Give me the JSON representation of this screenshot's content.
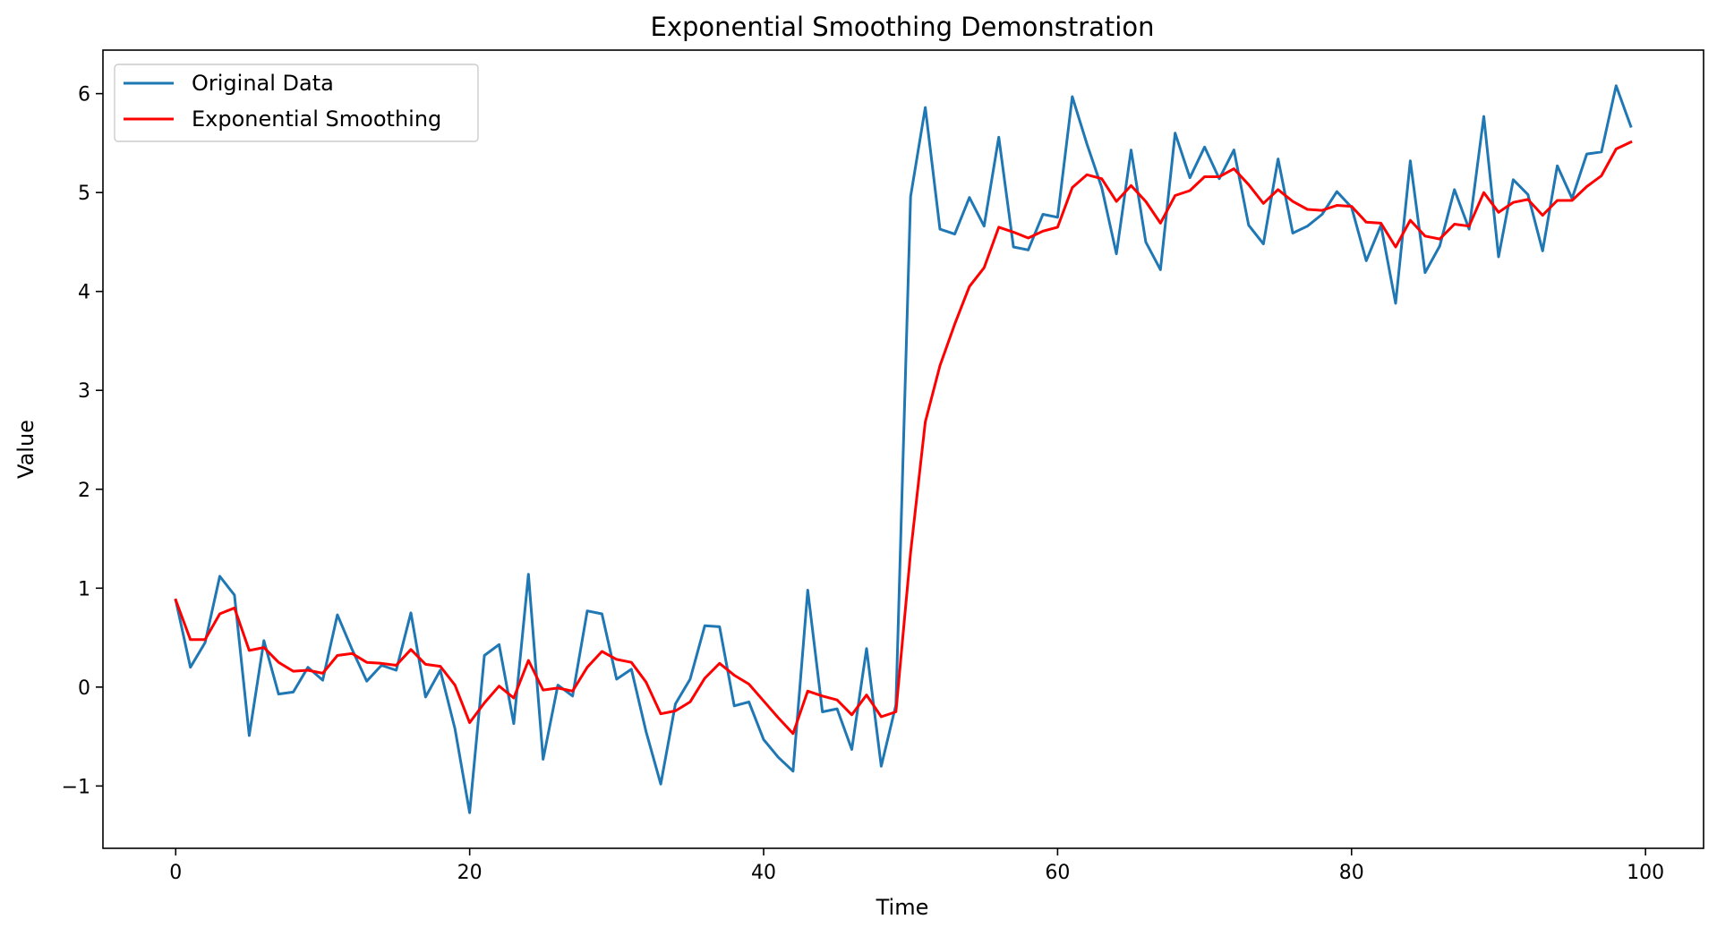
{
  "chart_data": {
    "type": "line",
    "title": "Exponential Smoothing Demonstration",
    "xlabel": "Time",
    "ylabel": "Value",
    "xlim": [
      -4.95,
      103.95
    ],
    "ylim": [
      -1.63,
      6.44
    ],
    "xticks": [
      0,
      20,
      40,
      60,
      80,
      100
    ],
    "yticks": [
      -1,
      0,
      1,
      2,
      3,
      4,
      5,
      6
    ],
    "ytick_labels": [
      "−1",
      "0",
      "1",
      "2",
      "3",
      "4",
      "5",
      "6"
    ],
    "grid": false,
    "legend_position": "top-left",
    "series": [
      {
        "name": "Original Data",
        "color": "#1f77b4",
        "x": [
          0,
          1,
          2,
          3,
          4,
          5,
          6,
          7,
          8,
          9,
          10,
          11,
          12,
          13,
          14,
          15,
          16,
          17,
          18,
          19,
          20,
          21,
          22,
          23,
          24,
          25,
          26,
          27,
          28,
          29,
          30,
          31,
          32,
          33,
          34,
          35,
          36,
          37,
          38,
          39,
          40,
          41,
          42,
          43,
          44,
          45,
          46,
          47,
          48,
          49,
          50,
          51,
          52,
          53,
          54,
          55,
          56,
          57,
          58,
          59,
          60,
          61,
          62,
          63,
          64,
          65,
          66,
          67,
          68,
          69,
          70,
          71,
          72,
          73,
          74,
          75,
          76,
          77,
          78,
          79,
          80,
          81,
          82,
          83,
          84,
          85,
          86,
          87,
          88,
          89,
          90,
          91,
          92,
          93,
          94,
          95,
          96,
          97,
          98,
          99
        ],
        "values": [
          0.88,
          0.2,
          0.45,
          1.12,
          0.93,
          -0.49,
          0.47,
          -0.07,
          -0.05,
          0.2,
          0.07,
          0.73,
          0.38,
          0.06,
          0.22,
          0.17,
          0.75,
          -0.1,
          0.17,
          -0.42,
          -1.27,
          0.32,
          0.43,
          -0.37,
          1.14,
          -0.73,
          0.02,
          -0.09,
          0.77,
          0.74,
          0.08,
          0.18,
          -0.45,
          -0.98,
          -0.17,
          0.08,
          0.62,
          0.61,
          -0.19,
          -0.15,
          -0.53,
          -0.71,
          -0.85,
          0.98,
          -0.25,
          -0.22,
          -0.63,
          0.39,
          -0.8,
          -0.18,
          4.96,
          5.86,
          4.63,
          4.58,
          4.95,
          4.66,
          5.56,
          4.45,
          4.42,
          4.78,
          4.75,
          5.97,
          5.49,
          5.05,
          4.38,
          5.43,
          4.5,
          4.22,
          5.6,
          5.15,
          5.46,
          5.14,
          5.43,
          4.67,
          4.48,
          5.34,
          4.59,
          4.66,
          4.78,
          5.01,
          4.85,
          4.31,
          4.67,
          3.88,
          5.32,
          4.19,
          4.46,
          5.03,
          4.63,
          5.77,
          4.35,
          5.13,
          4.98,
          4.41,
          5.27,
          4.94,
          5.39,
          5.41,
          6.08,
          5.67
        ]
      },
      {
        "name": "Exponential Smoothing",
        "color": "#ff0000",
        "x": [
          0,
          1,
          2,
          3,
          4,
          5,
          6,
          7,
          8,
          9,
          10,
          11,
          12,
          13,
          14,
          15,
          16,
          17,
          18,
          19,
          20,
          21,
          22,
          23,
          24,
          25,
          26,
          27,
          28,
          29,
          30,
          31,
          32,
          33,
          34,
          35,
          36,
          37,
          38,
          39,
          40,
          41,
          42,
          43,
          44,
          45,
          46,
          47,
          48,
          49,
          50,
          51,
          52,
          53,
          54,
          55,
          56,
          57,
          58,
          59,
          60,
          61,
          62,
          63,
          64,
          65,
          66,
          67,
          68,
          69,
          70,
          71,
          72,
          73,
          74,
          75,
          76,
          77,
          78,
          79,
          80,
          81,
          82,
          83,
          84,
          85,
          86,
          87,
          88,
          89,
          90,
          91,
          92,
          93,
          94,
          95,
          96,
          97,
          98,
          99
        ],
        "values": [
          0.88,
          0.48,
          0.48,
          0.74,
          0.8,
          0.37,
          0.4,
          0.25,
          0.16,
          0.17,
          0.14,
          0.32,
          0.34,
          0.25,
          0.24,
          0.22,
          0.38,
          0.23,
          0.21,
          0.02,
          -0.36,
          -0.16,
          0.01,
          -0.11,
          0.27,
          -0.03,
          -0.01,
          -0.04,
          0.2,
          0.36,
          0.28,
          0.25,
          0.05,
          -0.27,
          -0.24,
          -0.15,
          0.09,
          0.24,
          0.12,
          0.03,
          -0.14,
          -0.31,
          -0.47,
          -0.04,
          -0.09,
          -0.13,
          -0.28,
          -0.08,
          -0.3,
          -0.25,
          1.36,
          2.68,
          3.25,
          3.67,
          4.05,
          4.24,
          4.65,
          4.6,
          4.54,
          4.61,
          4.65,
          5.05,
          5.18,
          5.14,
          4.91,
          5.07,
          4.91,
          4.69,
          4.97,
          5.02,
          5.16,
          5.16,
          5.24,
          5.08,
          4.89,
          5.03,
          4.91,
          4.83,
          4.82,
          4.87,
          4.86,
          4.7,
          4.69,
          4.45,
          4.72,
          4.56,
          4.53,
          4.68,
          4.66,
          5.0,
          4.8,
          4.9,
          4.93,
          4.77,
          4.92,
          4.92,
          5.06,
          5.17,
          5.44,
          5.51
        ]
      }
    ]
  }
}
